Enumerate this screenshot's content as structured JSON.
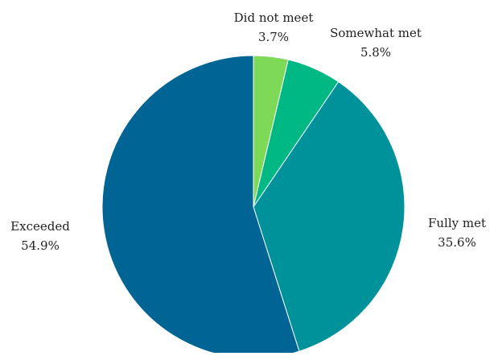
{
  "chart_data": {
    "type": "pie",
    "slices": [
      {
        "label": "Did not meet",
        "value": 3.7,
        "value_label": "3.7%",
        "color": "#7ED957"
      },
      {
        "label": "Somewhat met",
        "value": 5.8,
        "value_label": "5.8%",
        "color": "#00B883"
      },
      {
        "label": "Fully met",
        "value": 35.6,
        "value_label": "35.6%",
        "color": "#00929A"
      },
      {
        "label": "Exceeded",
        "value": 54.9,
        "value_label": "54.9%",
        "color": "#006594"
      }
    ],
    "start_angle_deg": 0,
    "direction": "clockwise",
    "legend": "none",
    "labels": "outside"
  }
}
